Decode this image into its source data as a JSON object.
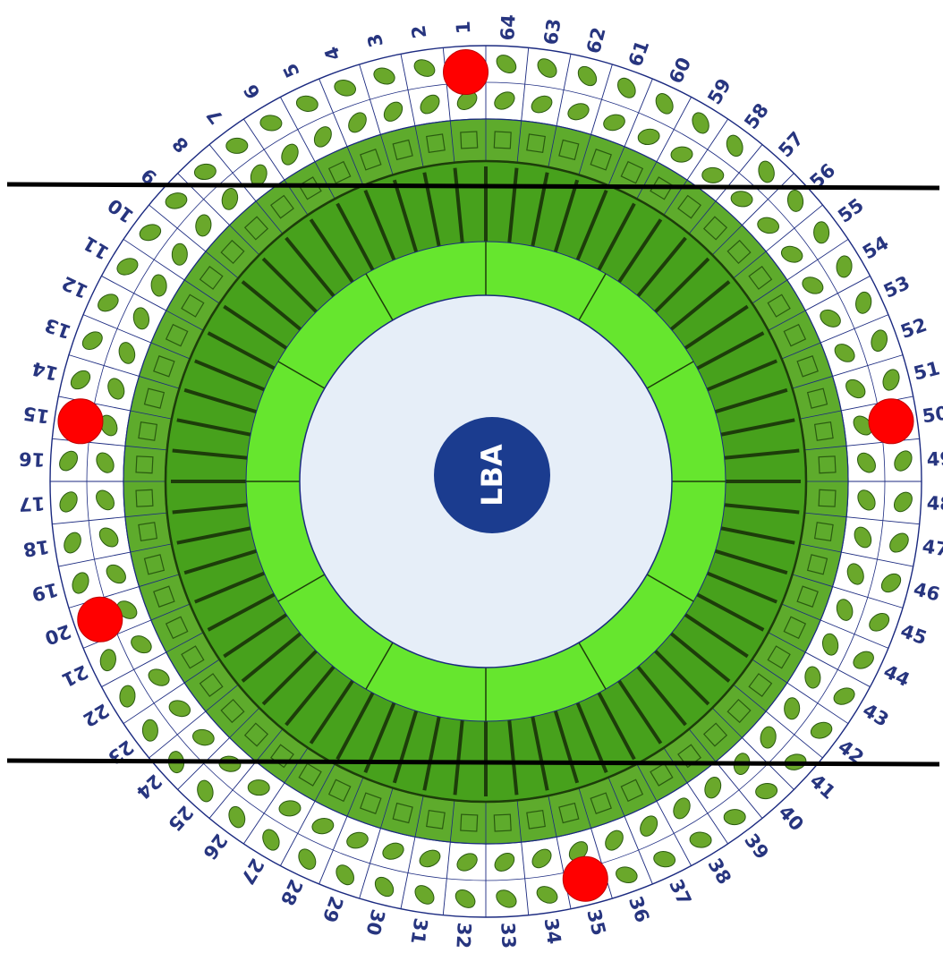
{
  "center_label": "LBA",
  "position_numbers": [
    "1",
    "2",
    "3",
    "4",
    "5",
    "6",
    "7",
    "8",
    "9",
    "10",
    "11",
    "12",
    "13",
    "14",
    "15",
    "16",
    "17",
    "18",
    "19",
    "20",
    "21",
    "22",
    "23",
    "24",
    "25",
    "26",
    "27",
    "28",
    "29",
    "30",
    "31",
    "32",
    "33",
    "34",
    "35",
    "36",
    "37",
    "38",
    "39",
    "40",
    "41",
    "42",
    "43",
    "44",
    "45",
    "46",
    "47",
    "48",
    "49",
    "50",
    "51",
    "52",
    "53",
    "54",
    "55",
    "56",
    "57",
    "58",
    "59",
    "60",
    "61",
    "62",
    "63",
    "64"
  ],
  "marked_positions": [
    1,
    15,
    20,
    35,
    50
  ],
  "colors": {
    "outer_ring_fill": "#ffffff",
    "seed_fill": "#6aa82b",
    "seed_stroke": "#2a5a10",
    "square_ring_fill": "#5eab2c",
    "spoke_ring_fill": "#47a11c",
    "spoke_color": "#1d3d0a",
    "inner_ring_fill": "#66e62e",
    "center_fill": "#e6eef8",
    "center_badge": "#1b3c8f",
    "grid_line": "#1b2a80",
    "marker": "#ff0000",
    "cut_line": "#000000",
    "number_color": "#27357f"
  }
}
